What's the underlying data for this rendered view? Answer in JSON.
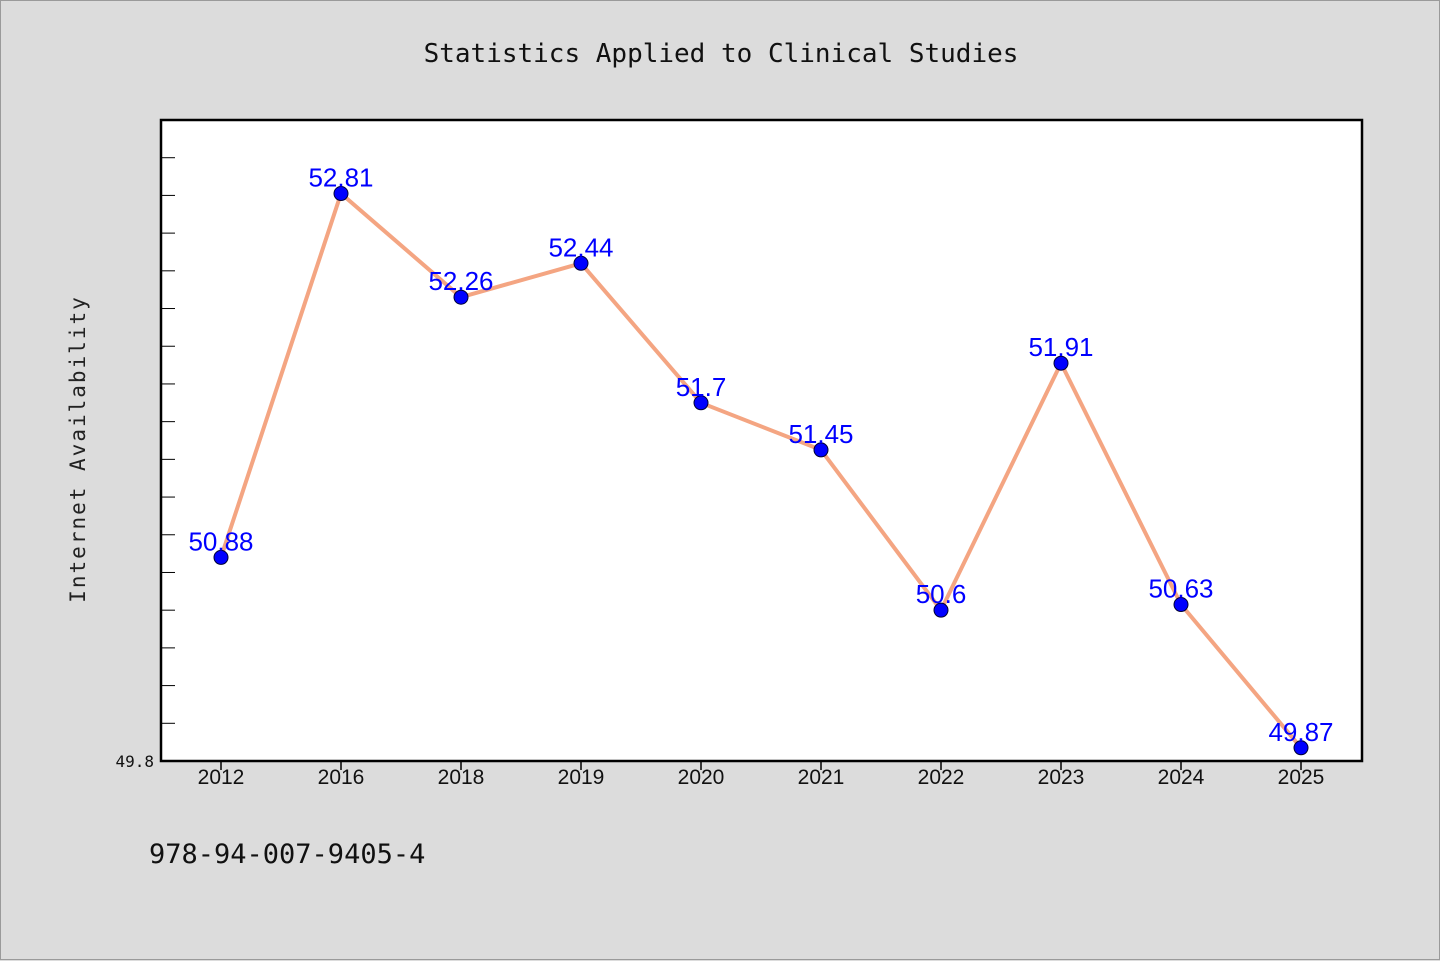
{
  "colors": {
    "background": "#dcdcdc",
    "plot_background": "#ffffff",
    "line": "#f4a582",
    "marker": "#0000ff",
    "data_label": "#0000ff"
  },
  "footer": {
    "isbn": "978-94-007-9405-4"
  },
  "chart_data": {
    "type": "line",
    "title": "Statistics Applied to Clinical Studies",
    "xlabel": "",
    "ylabel": "Internet Availability",
    "categories": [
      "2012",
      "2016",
      "2018",
      "2019",
      "2020",
      "2021",
      "2022",
      "2023",
      "2024",
      "2025"
    ],
    "values": [
      50.88,
      52.81,
      52.26,
      52.44,
      51.7,
      51.45,
      50.6,
      51.91,
      50.63,
      49.87
    ],
    "data_labels": [
      "50.88",
      "52.81",
      "52.26",
      "52.44",
      "51.7",
      "51.45",
      "50.6",
      "51.91",
      "50.63",
      "49.87"
    ],
    "ylim": [
      49.8,
      53.2
    ],
    "yticks_labeled": [
      "49.8"
    ],
    "grid": false,
    "legend": "none",
    "marker": "circle"
  }
}
